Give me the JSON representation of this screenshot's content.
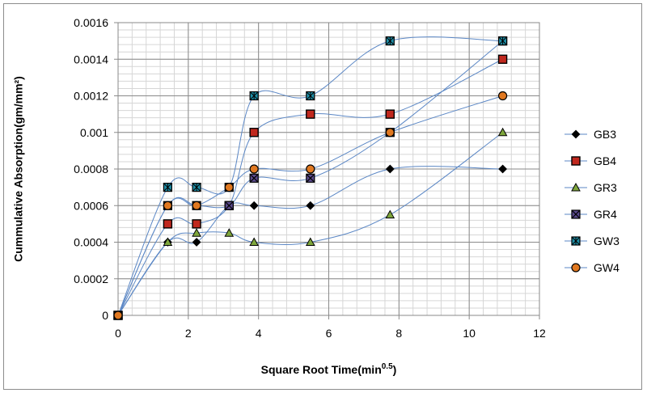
{
  "chart_data": {
    "type": "line",
    "xlabel": "Square Root Time(min",
    "xlabel_sup": "0.5",
    "xlabel_end": ")",
    "ylabel": "Cummulative Absorption(gm/mm²)",
    "xlim": [
      0,
      12
    ],
    "ylim": [
      0,
      0.0016
    ],
    "x_ticks": [
      "0",
      "2",
      "4",
      "6",
      "8",
      "10",
      "12"
    ],
    "y_ticks": [
      "0",
      "0.0002",
      "0.0004",
      "0.0006",
      "0.0008",
      "0.001",
      "0.0012",
      "0.0014",
      "0.0016"
    ],
    "x_minor_step": 0.4,
    "y_minor_step": 4e-05,
    "grid": true,
    "legend_position": "right",
    "line_color": "#5b87c5",
    "x": [
      0,
      1.414,
      2.236,
      3.162,
      3.873,
      5.477,
      7.746,
      10.954
    ],
    "series": [
      {
        "name": "GB3",
        "marker": "diamond",
        "fill": "#000000",
        "values": [
          0,
          0.0004,
          0.0004,
          0.0006,
          0.0006,
          0.0006,
          0.0008,
          0.0008
        ]
      },
      {
        "name": "GB4",
        "marker": "square",
        "fill": "#c0281e",
        "values": [
          0,
          0.0005,
          0.0005,
          0.0006,
          0.001,
          0.0011,
          0.0011,
          0.0014
        ]
      },
      {
        "name": "GR3",
        "marker": "triangle",
        "fill": "#7ea63c",
        "values": [
          0,
          0.0004,
          0.00045,
          0.00045,
          0.0004,
          0.0004,
          0.00055,
          0.001
        ]
      },
      {
        "name": "GR4",
        "marker": "xsquare",
        "fill": "#5a4a8c",
        "values": [
          0,
          0.0006,
          0.0006,
          0.0006,
          0.00075,
          0.00075,
          0.001,
          0.0015
        ]
      },
      {
        "name": "GW3",
        "marker": "starsquare",
        "fill": "#1e8fa8",
        "values": [
          0,
          0.0007,
          0.0007,
          0.0007,
          0.0012,
          0.0012,
          0.0015,
          0.0015
        ]
      },
      {
        "name": "GW4",
        "marker": "circle",
        "fill": "#e07820",
        "values": [
          0,
          0.0006,
          0.0006,
          0.0007,
          0.0008,
          0.0008,
          0.001,
          0.0012
        ]
      }
    ]
  }
}
